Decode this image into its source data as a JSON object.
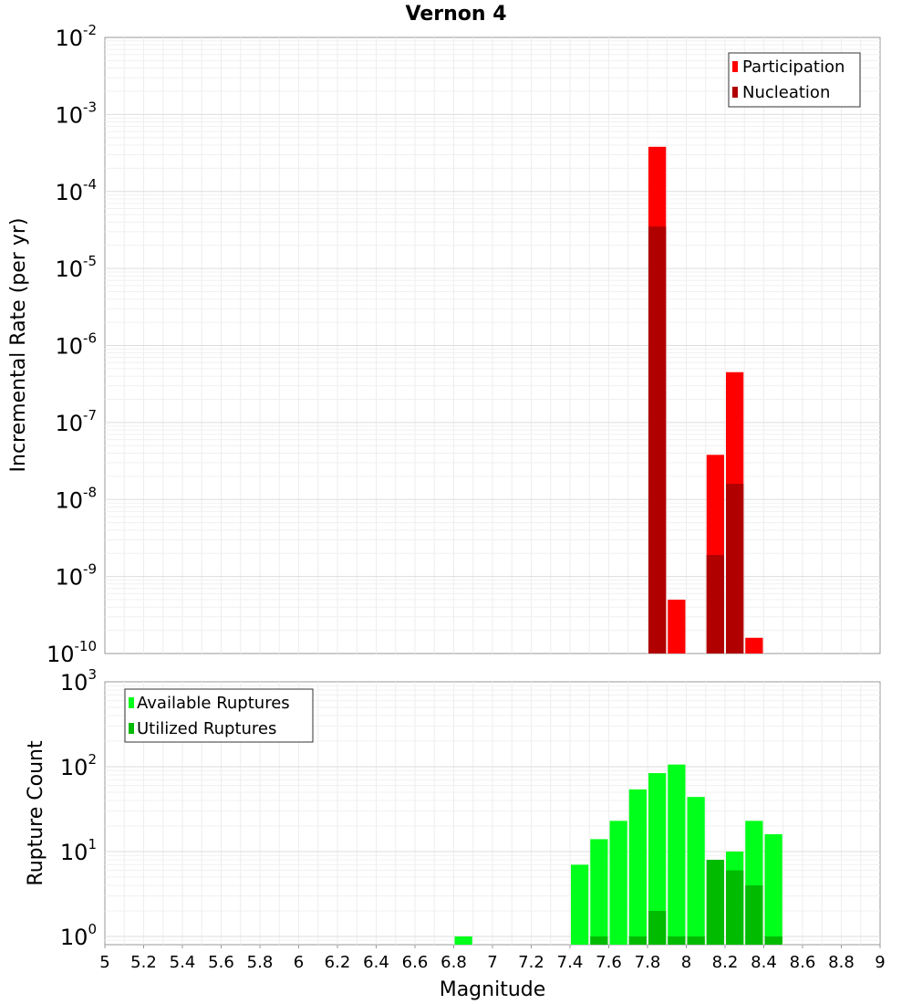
{
  "chart_data": [
    {
      "type": "bar",
      "title": "Vernon 4",
      "xlabel": "",
      "ylabel": "Incremental Rate (per yr)",
      "y_scale": "log",
      "ylim": [
        1e-10,
        0.01
      ],
      "xlim": [
        5,
        9
      ],
      "bin_width": 0.1,
      "grid": true,
      "legend_position": "top-right",
      "y_ticks": [
        {
          "base": "10",
          "exp": "-2"
        },
        {
          "base": "10",
          "exp": "-3"
        },
        {
          "base": "10",
          "exp": "-4"
        },
        {
          "base": "10",
          "exp": "-5"
        },
        {
          "base": "10",
          "exp": "-6"
        },
        {
          "base": "10",
          "exp": "-7"
        },
        {
          "base": "10",
          "exp": "-8"
        },
        {
          "base": "10",
          "exp": "-9"
        },
        {
          "base": "10",
          "exp": "-10"
        }
      ],
      "series": [
        {
          "name": "Participation",
          "color": "#ff0000",
          "x": [
            7.85,
            7.95,
            8.15,
            8.25,
            8.35
          ],
          "values": [
            0.00038,
            5e-10,
            3.8e-08,
            4.5e-07,
            1.6e-10
          ]
        },
        {
          "name": "Nucleation",
          "color": "#b00000",
          "x": [
            7.85,
            8.15,
            8.25
          ],
          "values": [
            3.5e-05,
            1.9e-09,
            1.6e-08
          ]
        }
      ]
    },
    {
      "type": "bar",
      "title": "",
      "xlabel": "Magnitude",
      "ylabel": "Rupture Count",
      "y_scale": "log",
      "ylim": [
        0.8,
        1000
      ],
      "xlim": [
        5,
        9
      ],
      "bin_width": 0.1,
      "grid": true,
      "legend_position": "top-left",
      "x_ticks": [
        "5",
        "5.2",
        "5.4",
        "5.6",
        "5.8",
        "6",
        "6.2",
        "6.4",
        "6.6",
        "6.8",
        "7",
        "7.2",
        "7.4",
        "7.6",
        "7.8",
        "8",
        "8.2",
        "8.4",
        "8.6",
        "8.8",
        "9"
      ],
      "y_ticks": [
        {
          "base": "10",
          "exp": "3"
        },
        {
          "base": "10",
          "exp": "2"
        },
        {
          "base": "10",
          "exp": "1"
        },
        {
          "base": "10",
          "exp": "0"
        }
      ],
      "series": [
        {
          "name": "Available Ruptures",
          "color": "#00ff1a",
          "x": [
            6.85,
            7.45,
            7.55,
            7.65,
            7.75,
            7.85,
            7.95,
            8.05,
            8.15,
            8.25,
            8.35,
            8.45
          ],
          "values": [
            1,
            7,
            14,
            23,
            54,
            84,
            106,
            44,
            8,
            10,
            23,
            16
          ]
        },
        {
          "name": "Utilized Ruptures",
          "color": "#00bb00",
          "x": [
            7.55,
            7.75,
            7.85,
            7.95,
            8.05,
            8.15,
            8.25,
            8.35,
            8.45
          ],
          "values": [
            1,
            1,
            2,
            1,
            1,
            8,
            6,
            4,
            1
          ]
        }
      ]
    }
  ]
}
